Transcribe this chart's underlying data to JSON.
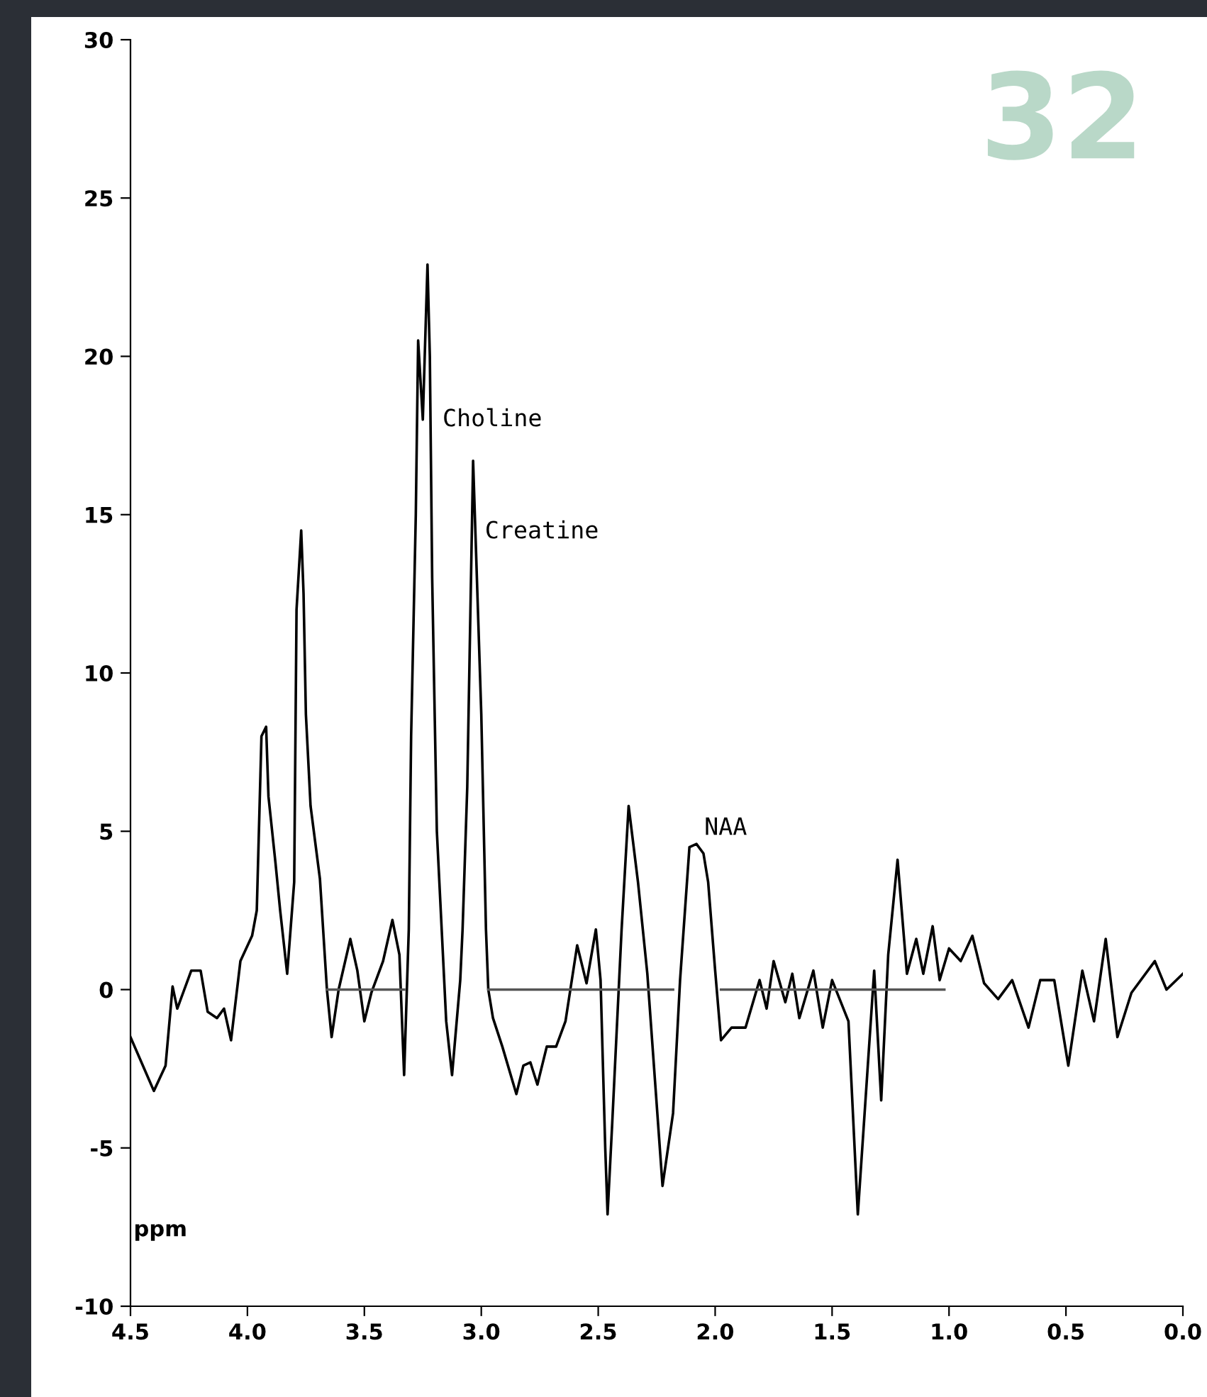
{
  "chart_data": {
    "type": "line",
    "xlim": [
      4.5,
      0.0
    ],
    "xticks": [
      {
        "value": 4.5,
        "label": "4.5"
      },
      {
        "value": 4.0,
        "label": "4.0"
      },
      {
        "value": 3.5,
        "label": "3.5"
      },
      {
        "value": 3.0,
        "label": "3.0"
      },
      {
        "value": 2.5,
        "label": "2.5"
      },
      {
        "value": 2.0,
        "label": "2.0"
      },
      {
        "value": 1.5,
        "label": "1.5"
      },
      {
        "value": 1.0,
        "label": "1.0"
      },
      {
        "value": 0.5,
        "label": "0.5"
      },
      {
        "value": 0.0,
        "label": "0.0"
      }
    ],
    "ylim": [
      -10,
      30
    ],
    "yticks": [
      -10,
      -5,
      0,
      5,
      10,
      15,
      20,
      25,
      30
    ],
    "grid": false,
    "marker": "none",
    "line_style": "solid",
    "series": [
      {
        "color": "#000000",
        "x": [
          4.5,
          4.4,
          4.35,
          4.32,
          4.3,
          4.24,
          4.2,
          4.17,
          4.13,
          4.1,
          4.07,
          4.03,
          3.98,
          3.96,
          3.94,
          3.92,
          3.91,
          3.88,
          3.86,
          3.83,
          3.8,
          3.79,
          3.77,
          3.76,
          3.75,
          3.73,
          3.69,
          3.66,
          3.64,
          3.61,
          3.56,
          3.53,
          3.5,
          3.47,
          3.42,
          3.38,
          3.35,
          3.33,
          3.31,
          3.3,
          3.28,
          3.27,
          3.25,
          3.23,
          3.22,
          3.21,
          3.19,
          3.15,
          3.125,
          3.09,
          3.08,
          3.06,
          3.035,
          3.0,
          2.98,
          2.97,
          2.95,
          2.91,
          2.85,
          2.82,
          2.79,
          2.76,
          2.72,
          2.68,
          2.64,
          2.59,
          2.55,
          2.51,
          2.49,
          2.47,
          2.46,
          2.44,
          2.4,
          2.37,
          2.33,
          2.29,
          2.225,
          2.18,
          2.15,
          2.11,
          2.08,
          2.05,
          2.03,
          2.0,
          1.975,
          1.93,
          1.87,
          1.81,
          1.78,
          1.75,
          1.7,
          1.67,
          1.64,
          1.58,
          1.54,
          1.5,
          1.43,
          1.39,
          1.35,
          1.32,
          1.29,
          1.26,
          1.22,
          1.18,
          1.14,
          1.11,
          1.07,
          1.04,
          1.0,
          0.95,
          0.9,
          0.85,
          0.79,
          0.73,
          0.66,
          0.61,
          0.55,
          0.49,
          0.43,
          0.38,
          0.33,
          0.28,
          0.22,
          0.12,
          0.07,
          0.0
        ],
        "values": [
          -1.5,
          -3.2,
          -2.4,
          0.1,
          -0.6,
          0.6,
          0.6,
          -0.7,
          -0.9,
          -0.6,
          -1.6,
          0.9,
          1.7,
          2.5,
          8.0,
          8.3,
          6.1,
          4.0,
          2.5,
          0.5,
          3.4,
          12.0,
          14.5,
          12.5,
          8.7,
          5.8,
          3.5,
          0.0,
          -1.5,
          0.0,
          1.6,
          0.6,
          -1.0,
          -0.1,
          0.9,
          2.2,
          1.1,
          -2.7,
          1.9,
          8.0,
          15.0,
          20.5,
          18.0,
          22.9,
          20.0,
          13.0,
          5.0,
          -1.0,
          -2.7,
          0.3,
          1.9,
          6.4,
          16.7,
          8.7,
          1.9,
          0.0,
          -0.9,
          -1.8,
          -3.3,
          -2.4,
          -2.3,
          -3.0,
          -1.8,
          -1.8,
          -1.0,
          1.4,
          0.2,
          1.9,
          0.3,
          -5.0,
          -7.1,
          -4.2,
          1.9,
          5.8,
          3.4,
          0.5,
          -6.2,
          -3.9,
          0.3,
          4.5,
          4.6,
          4.3,
          3.4,
          0.6,
          -1.6,
          -1.2,
          -1.2,
          0.3,
          -0.6,
          0.9,
          -0.4,
          0.5,
          -0.9,
          0.6,
          -1.2,
          0.3,
          -1.0,
          -7.1,
          -2.7,
          0.6,
          -3.5,
          1.1,
          4.1,
          0.5,
          1.6,
          0.5,
          2.0,
          0.3,
          1.3,
          0.9,
          1.7,
          0.2,
          -0.3,
          0.3,
          -1.2,
          0.3,
          0.3,
          -2.4,
          0.6,
          -1.0,
          1.6,
          -1.5,
          -0.1,
          0.9,
          0.0,
          0.5
        ]
      },
      {
        "color": "#555555",
        "x": [
          3.66,
          3.33,
          3.32,
          2.97,
          2.18,
          2.17,
          1.975,
          1.02
        ],
        "values": [
          0,
          0,
          null,
          0,
          0,
          null,
          0,
          0
        ]
      }
    ],
    "annotations": [
      {
        "text": "Choline",
        "x": 3.25,
        "y": 18.0
      },
      {
        "text": "Creatine",
        "x": 3.035,
        "y": 16.7
      },
      {
        "text": "NAA",
        "x": 2.08,
        "y": 4.6
      },
      "ppm",
      "32"
    ]
  }
}
